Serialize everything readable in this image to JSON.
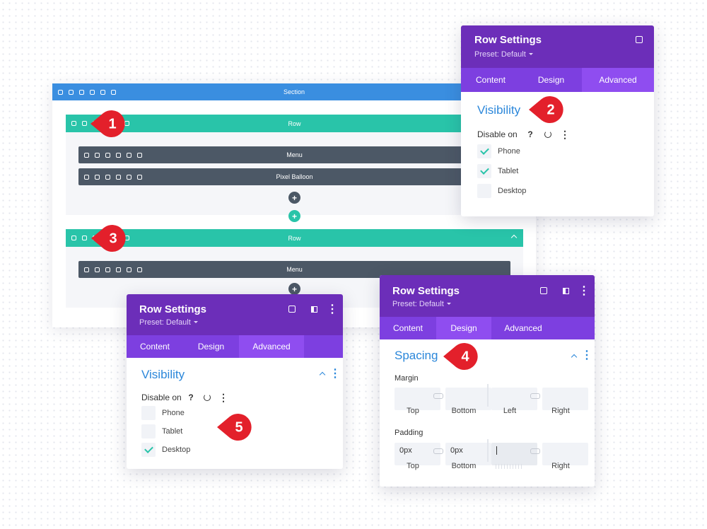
{
  "builder": {
    "section": "Section",
    "rows": [
      {
        "label": "Row",
        "modules": [
          "Menu",
          "Pixel Balloon"
        ]
      },
      {
        "label": "Row",
        "modules": [
          "Menu"
        ]
      }
    ]
  },
  "badges": [
    "1",
    "2",
    "3",
    "4",
    "5"
  ],
  "panels": [
    {
      "title": "Row Settings",
      "preset": "Preset: Default",
      "tabs": [
        "Content",
        "Design",
        "Advanced"
      ],
      "heading": "Visibility",
      "disable_on": "Disable on",
      "options": [
        {
          "label": "Phone",
          "checked": true
        },
        {
          "label": "Tablet",
          "checked": true
        },
        {
          "label": "Desktop",
          "checked": false
        }
      ]
    },
    {
      "title": "Row Settings",
      "preset": "Preset: Default",
      "tabs": [
        "Content",
        "Design",
        "Advanced"
      ],
      "heading": "Visibility",
      "disable_on": "Disable on",
      "options": [
        {
          "label": "Phone",
          "checked": false
        },
        {
          "label": "Tablet",
          "checked": false
        },
        {
          "label": "Desktop",
          "checked": true
        }
      ]
    },
    {
      "title": "Row Settings",
      "preset": "Preset: Default",
      "tabs": [
        "Content",
        "Design",
        "Advanced"
      ],
      "heading": "Spacing",
      "margin": {
        "label": "Margin",
        "fields": [
          "Top",
          "Bottom",
          "Left",
          "Right"
        ]
      },
      "padding": {
        "label": "Padding",
        "values": [
          "0px",
          "0px"
        ],
        "fields": [
          "Top",
          "Bottom",
          "Right"
        ]
      }
    }
  ]
}
